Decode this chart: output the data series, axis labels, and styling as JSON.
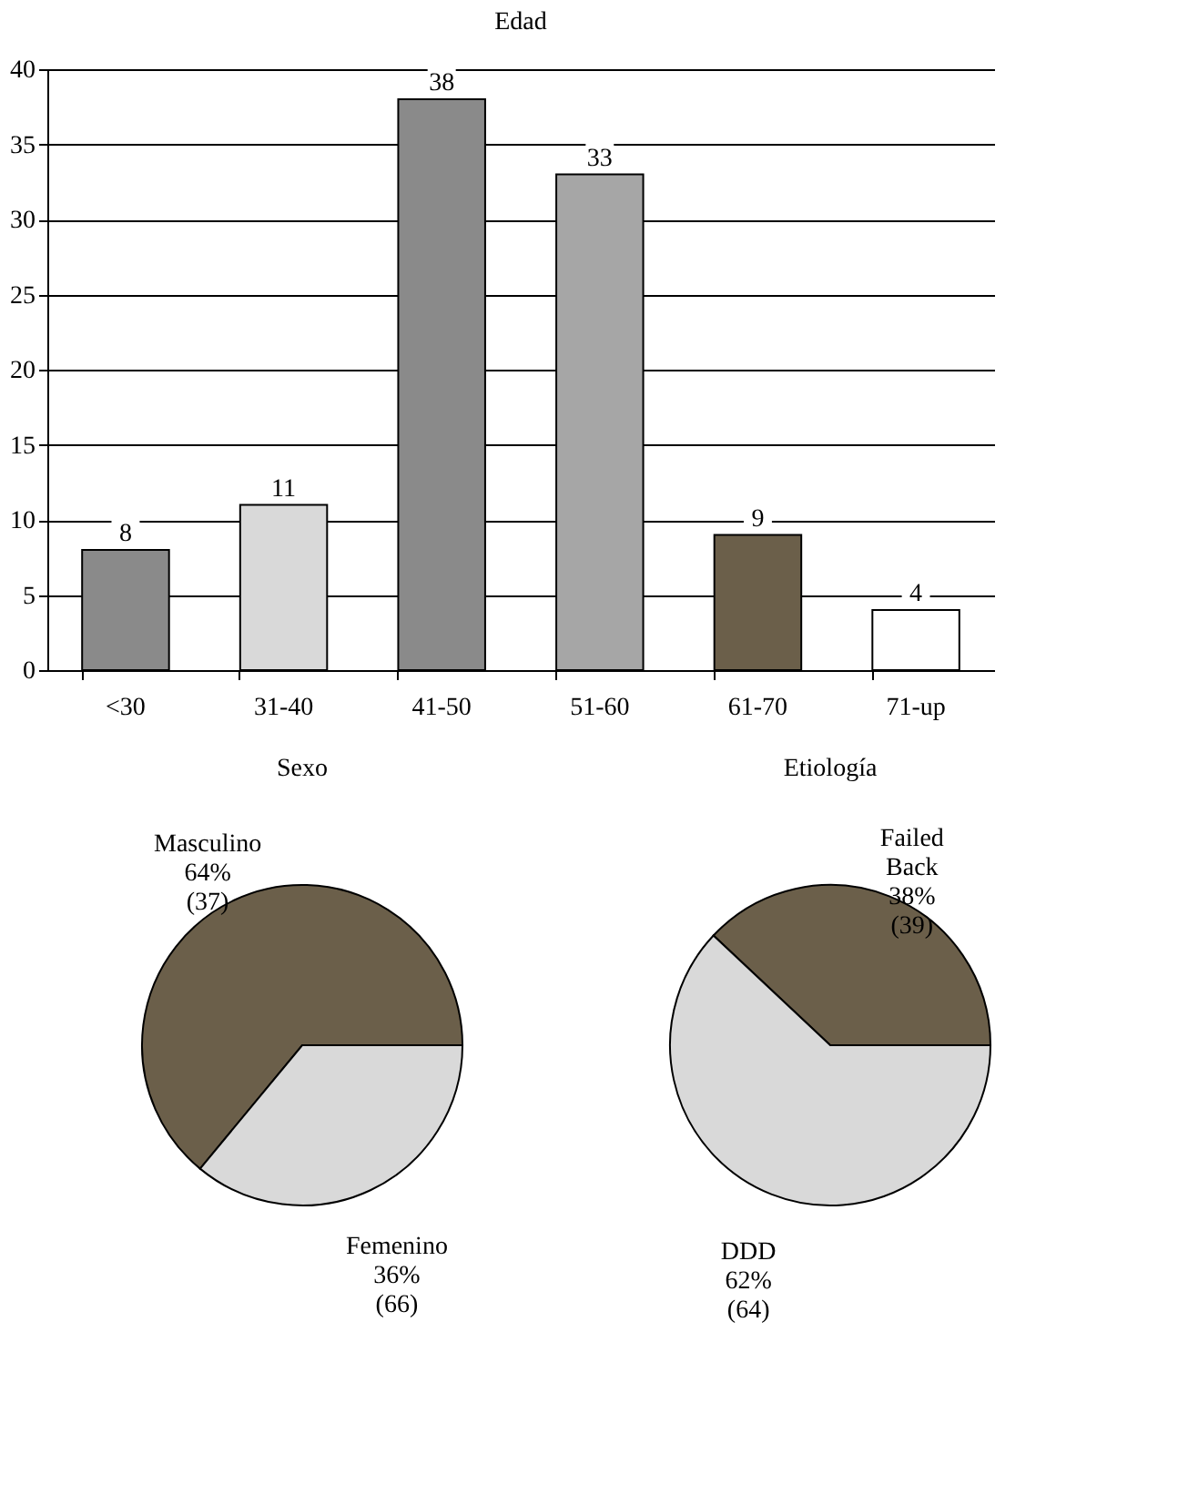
{
  "chart_data": [
    {
      "type": "bar",
      "title": "Edad",
      "categories": [
        "<30",
        "31-40",
        "41-50",
        "51-60",
        "61-70",
        "71-up"
      ],
      "values": [
        8,
        11,
        38,
        33,
        9,
        4
      ],
      "colors": [
        "#8a8a8a",
        "#d9d9d9",
        "#8a8a8a",
        "#a6a6a6",
        "#6b5f4a",
        "#ffffff"
      ],
      "ylim": [
        0,
        40
      ],
      "yticks": [
        0,
        5,
        10,
        15,
        20,
        25,
        30,
        35,
        40
      ],
      "grid": "y",
      "data_labels": true
    },
    {
      "type": "pie",
      "title": "Sexo",
      "categories": [
        "Masculino",
        "Femenino"
      ],
      "values": [
        64,
        36
      ],
      "colors": [
        "#6b5f4a",
        "#d9d9d9"
      ],
      "value_labels": [
        "64% (37)",
        "36% (66)"
      ]
    },
    {
      "type": "pie",
      "title": "Etiología",
      "categories": [
        "Failed Back",
        "DDD"
      ],
      "values": [
        38,
        62
      ],
      "colors": [
        "#6b5f4a",
        "#d9d9d9"
      ],
      "value_labels": [
        "38% (39)",
        "62% (64)"
      ]
    }
  ]
}
